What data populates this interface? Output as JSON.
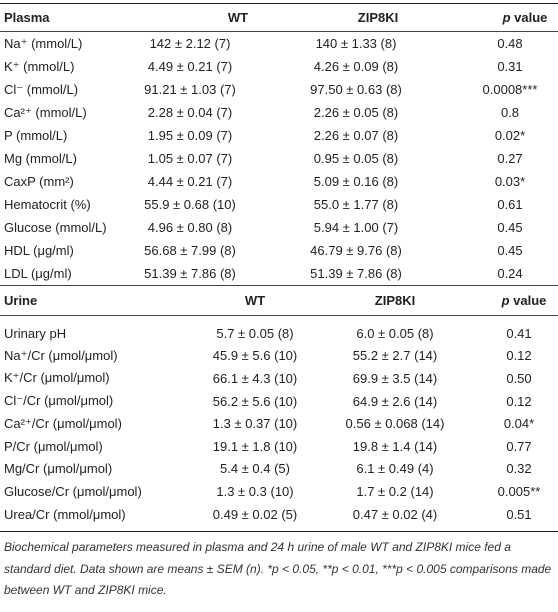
{
  "plasma": {
    "header": [
      "Plasma",
      "WT",
      "ZIP8KI",
      "p value"
    ],
    "rows": [
      [
        "Na⁺ (mmol/L)",
        "142 ± 2.12 (7)",
        "140 ± 1.33 (8)",
        "0.48"
      ],
      [
        "K⁺ (mmol/L)",
        "4.49 ± 0.21 (7)",
        "4.26 ± 0.09 (8)",
        "0.31"
      ],
      [
        "Cl⁻ (mmol/L)",
        "91.21 ± 1.03 (7)",
        "97.50 ± 0.63 (8)",
        "0.0008***"
      ],
      [
        "Ca²⁺ (mmol/L)",
        "2.28 ± 0.04 (7)",
        "2.26 ± 0.05 (8)",
        "0.8"
      ],
      [
        "P (mmol/L)",
        "1.95 ± 0.09 (7)",
        "2.26 ± 0.07 (8)",
        "0.02*"
      ],
      [
        "Mg (mmol/L)",
        "1.05 ± 0.07 (7)",
        "0.95 ± 0.05 (8)",
        "0.27"
      ],
      [
        "CaxP (mm²)",
        "4.44 ± 0.21 (7)",
        "5.09 ± 0.16 (8)",
        "0.03*"
      ],
      [
        "Hematocrit (%)",
        "55.9 ± 0.68 (10)",
        "55.0 ± 1.77 (8)",
        "0.61"
      ],
      [
        "Glucose (mmol/L)",
        "4.96 ± 0.80 (8)",
        "5.94 ± 1.00 (7)",
        "0.45"
      ],
      [
        "HDL (μg/ml)",
        "56.68 ± 7.99 (8)",
        "46.79 ± 9.76 (8)",
        "0.45"
      ],
      [
        "LDL (μg/ml)",
        "51.39 ± 7.86 (8)",
        "51.39 ± 7.86 (8)",
        "0.24"
      ]
    ]
  },
  "urine": {
    "header": [
      "Urine",
      "WT",
      "ZIP8KI",
      "p value"
    ],
    "rows": [
      [
        "Urinary pH",
        "5.7 ± 0.05 (8)",
        "6.0 ± 0.05 (8)",
        "0.41"
      ],
      [
        "Na⁺/Cr (μmol/μmol)",
        "45.9 ± 5.6 (10)",
        "55.2 ± 2.7 (14)",
        "0.12"
      ],
      [
        "K⁺/Cr (μmol/μmol)",
        "66.1 ± 4.3 (10)",
        "69.9 ± 3.5 (14)",
        "0.50"
      ],
      [
        "Cl⁻/Cr (μmol/μmol)",
        "56.2 ± 5.6 (10)",
        "64.9 ± 2.6 (14)",
        "0.12"
      ],
      [
        "Ca²⁺/Cr (μmol/μmol)",
        "1.3 ± 0.37 (10)",
        "0.56 ± 0.068 (14)",
        "0.04*"
      ],
      [
        "P/Cr (μmol/μmol)",
        "19.1 ± 1.8 (10)",
        "19.8 ± 1.4 (14)",
        "0.77"
      ],
      [
        "Mg/Cr (μmol/μmol)",
        "5.4 ± 0.4 (5)",
        "6.1 ± 0.49 (4)",
        "0.32"
      ],
      [
        "Glucose/Cr (μmol/μmol)",
        "1.3 ± 0.3 (10)",
        "1.7 ± 0.2 (14)",
        "0.005**"
      ],
      [
        "Urea/Cr (mmol/μmol)",
        "0.49 ± 0.02 (5)",
        "0.47 ± 0.02 (4)",
        "0.51"
      ]
    ]
  },
  "caption": "Biochemical parameters measured in plasma and 24 h urine of male WT and ZIP8KI mice fed a standard diet. Data shown are means ± SEM (n). *p < 0.05, **p < 0.01, ***p < 0.005 comparisons made between WT and ZIP8KI mice."
}
